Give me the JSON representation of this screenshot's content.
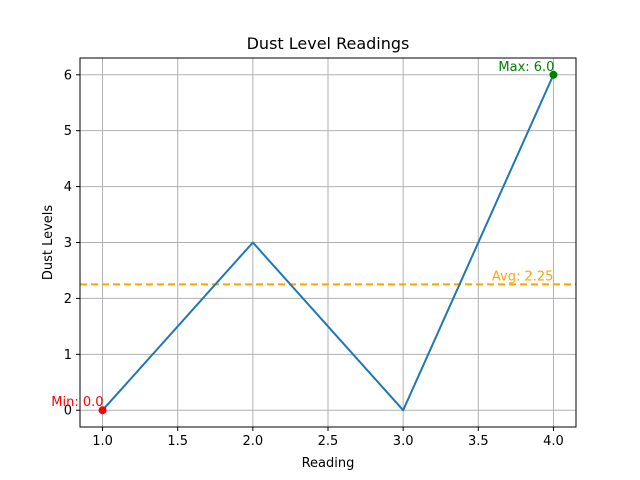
{
  "chart_data": {
    "type": "line",
    "title": "Dust Level Readings",
    "xlabel": "Reading",
    "ylabel": "Dust Levels",
    "xlim": [
      0.85,
      4.15
    ],
    "ylim": [
      -0.3,
      6.3
    ],
    "x_ticks": [
      1.0,
      1.5,
      2.0,
      2.5,
      3.0,
      3.5,
      4.0
    ],
    "x_tick_labels": [
      "1.0",
      "1.5",
      "2.0",
      "2.5",
      "3.0",
      "3.5",
      "4.0"
    ],
    "y_ticks": [
      0,
      1,
      2,
      3,
      4,
      5,
      6
    ],
    "y_tick_labels": [
      "0",
      "1",
      "2",
      "3",
      "4",
      "5",
      "6"
    ],
    "grid": true,
    "x": [
      1,
      2,
      3,
      4
    ],
    "series": [
      {
        "values": [
          0,
          3,
          0,
          6
        ],
        "color": "#1f77b4"
      }
    ],
    "average_line": {
      "value": 2.25,
      "label": "Avg: 2.25",
      "color": "#ffa500"
    },
    "min_point": {
      "x": 1,
      "y": 0,
      "label": "Min: 0.0",
      "color": "#ff0000"
    },
    "max_point": {
      "x": 4,
      "y": 6,
      "label": "Max: 6.0",
      "color": "#008000"
    }
  }
}
